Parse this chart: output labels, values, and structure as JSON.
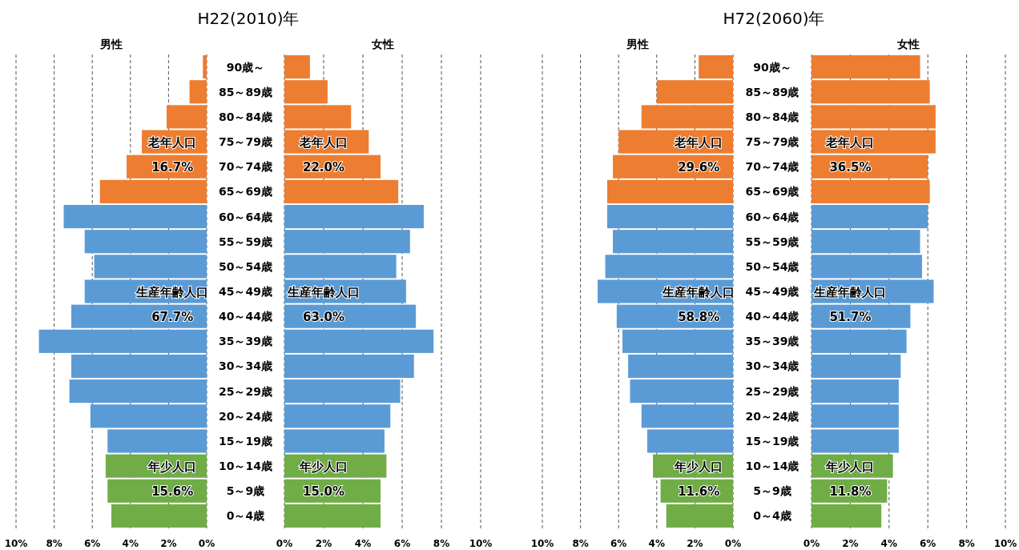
{
  "chart_data": [
    {
      "type": "bar",
      "orientation": "horizontal",
      "title": "H22(2010)年",
      "subtitle": "男性",
      "tick_labels": "x",
      "grid": "x",
      "categories": [
        null,
        null,
        null,
        null,
        null,
        null,
        null,
        null,
        null,
        null,
        null,
        null,
        null,
        null,
        null,
        null,
        null,
        null,
        null
      ],
      "values": [
        0.2,
        0.9,
        2.1,
        3.4,
        4.2,
        5.6,
        7.5,
        6.4,
        5.9,
        6.4,
        7.1,
        8.8,
        7.1,
        7.2,
        6.1,
        5.2,
        5.3,
        5.2,
        5.0
      ],
      "colors": [
        "#ed7d31",
        "#ed7d31",
        "#ed7d31",
        "#ed7d31",
        "#ed7d31",
        "#ed7d31",
        "#5b9bd5",
        "#5b9bd5",
        "#5b9bd5",
        "#5b9bd5",
        "#5b9bd5",
        "#5b9bd5",
        "#5b9bd5",
        "#5b9bd5",
        "#5b9bd5",
        "#5b9bd5",
        "#70ad47",
        "#70ad47",
        "#70ad47"
      ],
      "xlim": [
        10,
        0
      ],
      "xticks": [
        {
          "value": 10,
          "label": "10%"
        },
        {
          "value": 8,
          "label": "8%"
        },
        {
          "value": 6,
          "label": "6%"
        },
        {
          "value": 4,
          "label": "4%"
        },
        {
          "value": 2,
          "label": "2%"
        },
        {
          "value": 0,
          "label": "0%"
        }
      ],
      "annotations": [
        "老年人口",
        "16.7%",
        "生産年齢人口",
        "67.7%",
        "年少人口",
        "15.6%"
      ]
    },
    {
      "type": "bar",
      "orientation": "horizontal",
      "subtitle": "女性",
      "grid": "x",
      "categories": [
        "90歳～",
        "85～89歳",
        "80～84歳",
        "75～79歳",
        "70～74歳",
        "65～69歳",
        "60～64歳",
        "55～59歳",
        "50～54歳",
        "45～49歳",
        "40～44歳",
        "35～39歳",
        "30～34歳",
        "25～29歳",
        "20～24歳",
        "15～19歳",
        "10～14歳",
        "5～9歳",
        "0～4歳"
      ],
      "values": [
        1.3,
        2.2,
        3.4,
        4.3,
        4.9,
        5.8,
        7.1,
        6.4,
        5.7,
        6.2,
        6.7,
        7.6,
        6.6,
        5.9,
        5.4,
        5.1,
        5.2,
        4.9,
        4.9
      ],
      "colors": [
        "#ed7d31",
        "#ed7d31",
        "#ed7d31",
        "#ed7d31",
        "#ed7d31",
        "#ed7d31",
        "#5b9bd5",
        "#5b9bd5",
        "#5b9bd5",
        "#5b9bd5",
        "#5b9bd5",
        "#5b9bd5",
        "#5b9bd5",
        "#5b9bd5",
        "#5b9bd5",
        "#5b9bd5",
        "#70ad47",
        "#70ad47",
        "#70ad47"
      ],
      "xlim": [
        0,
        10
      ],
      "xticks": [
        {
          "value": 0,
          "label": "0%"
        },
        {
          "value": 2,
          "label": "2%"
        },
        {
          "value": 4,
          "label": "4%"
        },
        {
          "value": 6,
          "label": "6%"
        },
        {
          "value": 8,
          "label": "8%"
        },
        {
          "value": 10,
          "label": "10%"
        }
      ],
      "annotations": [
        "老年人口",
        "22.0%",
        "生産年齢人口",
        "63.0%",
        "年少人口",
        "15.0%"
      ]
    },
    {
      "type": "bar",
      "orientation": "horizontal",
      "title": "H72(2060)年",
      "subtitle": "男性",
      "tick_labels": "x",
      "grid": "x",
      "categories": [
        null,
        null,
        null,
        null,
        null,
        null,
        null,
        null,
        null,
        null,
        null,
        null,
        null,
        null,
        null,
        null,
        null,
        null,
        null
      ],
      "values": [
        1.8,
        4.0,
        4.8,
        6.0,
        6.3,
        6.6,
        6.6,
        6.3,
        6.7,
        7.1,
        6.1,
        5.8,
        5.5,
        5.4,
        4.8,
        4.5,
        4.2,
        3.8,
        3.5
      ],
      "colors": [
        "#ed7d31",
        "#ed7d31",
        "#ed7d31",
        "#ed7d31",
        "#ed7d31",
        "#ed7d31",
        "#5b9bd5",
        "#5b9bd5",
        "#5b9bd5",
        "#5b9bd5",
        "#5b9bd5",
        "#5b9bd5",
        "#5b9bd5",
        "#5b9bd5",
        "#5b9bd5",
        "#5b9bd5",
        "#70ad47",
        "#70ad47",
        "#70ad47"
      ],
      "xlim": [
        10,
        0
      ],
      "xticks": [
        {
          "value": 10,
          "label": "10%"
        },
        {
          "value": 8,
          "label": "8%"
        },
        {
          "value": 6,
          "label": "6%"
        },
        {
          "value": 4,
          "label": "4%"
        },
        {
          "value": 2,
          "label": "2%"
        },
        {
          "value": 0,
          "label": "0%"
        }
      ],
      "annotations": [
        "老年人口",
        "29.6%",
        "生産年齢人口",
        "58.8%",
        "年少人口",
        "11.6%"
      ]
    },
    {
      "type": "bar",
      "orientation": "horizontal",
      "subtitle": "女性",
      "grid": "x",
      "categories": [
        "90歳～",
        "85～89歳",
        "80～84歳",
        "75～79歳",
        "70～74歳",
        "65～69歳",
        "60～64歳",
        "55～59歳",
        "50～54歳",
        "45～49歳",
        "40～44歳",
        "35～39歳",
        "30～34歳",
        "25～29歳",
        "20～24歳",
        "15～19歳",
        "10～14歳",
        "5～9歳",
        "0～4歳"
      ],
      "values": [
        5.6,
        6.1,
        6.4,
        6.4,
        6.0,
        6.1,
        6.0,
        5.6,
        5.7,
        6.3,
        5.1,
        4.9,
        4.6,
        4.5,
        4.5,
        4.5,
        4.2,
        3.9,
        3.6
      ],
      "colors": [
        "#ed7d31",
        "#ed7d31",
        "#ed7d31",
        "#ed7d31",
        "#ed7d31",
        "#ed7d31",
        "#5b9bd5",
        "#5b9bd5",
        "#5b9bd5",
        "#5b9bd5",
        "#5b9bd5",
        "#5b9bd5",
        "#5b9bd5",
        "#5b9bd5",
        "#5b9bd5",
        "#5b9bd5",
        "#70ad47",
        "#70ad47",
        "#70ad47"
      ],
      "xlim": [
        0,
        10
      ],
      "xticks": [
        {
          "value": 0,
          "label": "0%"
        },
        {
          "value": 2,
          "label": "2%"
        },
        {
          "value": 4,
          "label": "4%"
        },
        {
          "value": 6,
          "label": "6%"
        },
        {
          "value": 8,
          "label": "8%"
        },
        {
          "value": 10,
          "label": "10%"
        }
      ],
      "annotations": [
        "老年人口",
        "36.5%",
        "生産年齢人口",
        "51.7%",
        "年少人口",
        "11.8%"
      ]
    }
  ]
}
